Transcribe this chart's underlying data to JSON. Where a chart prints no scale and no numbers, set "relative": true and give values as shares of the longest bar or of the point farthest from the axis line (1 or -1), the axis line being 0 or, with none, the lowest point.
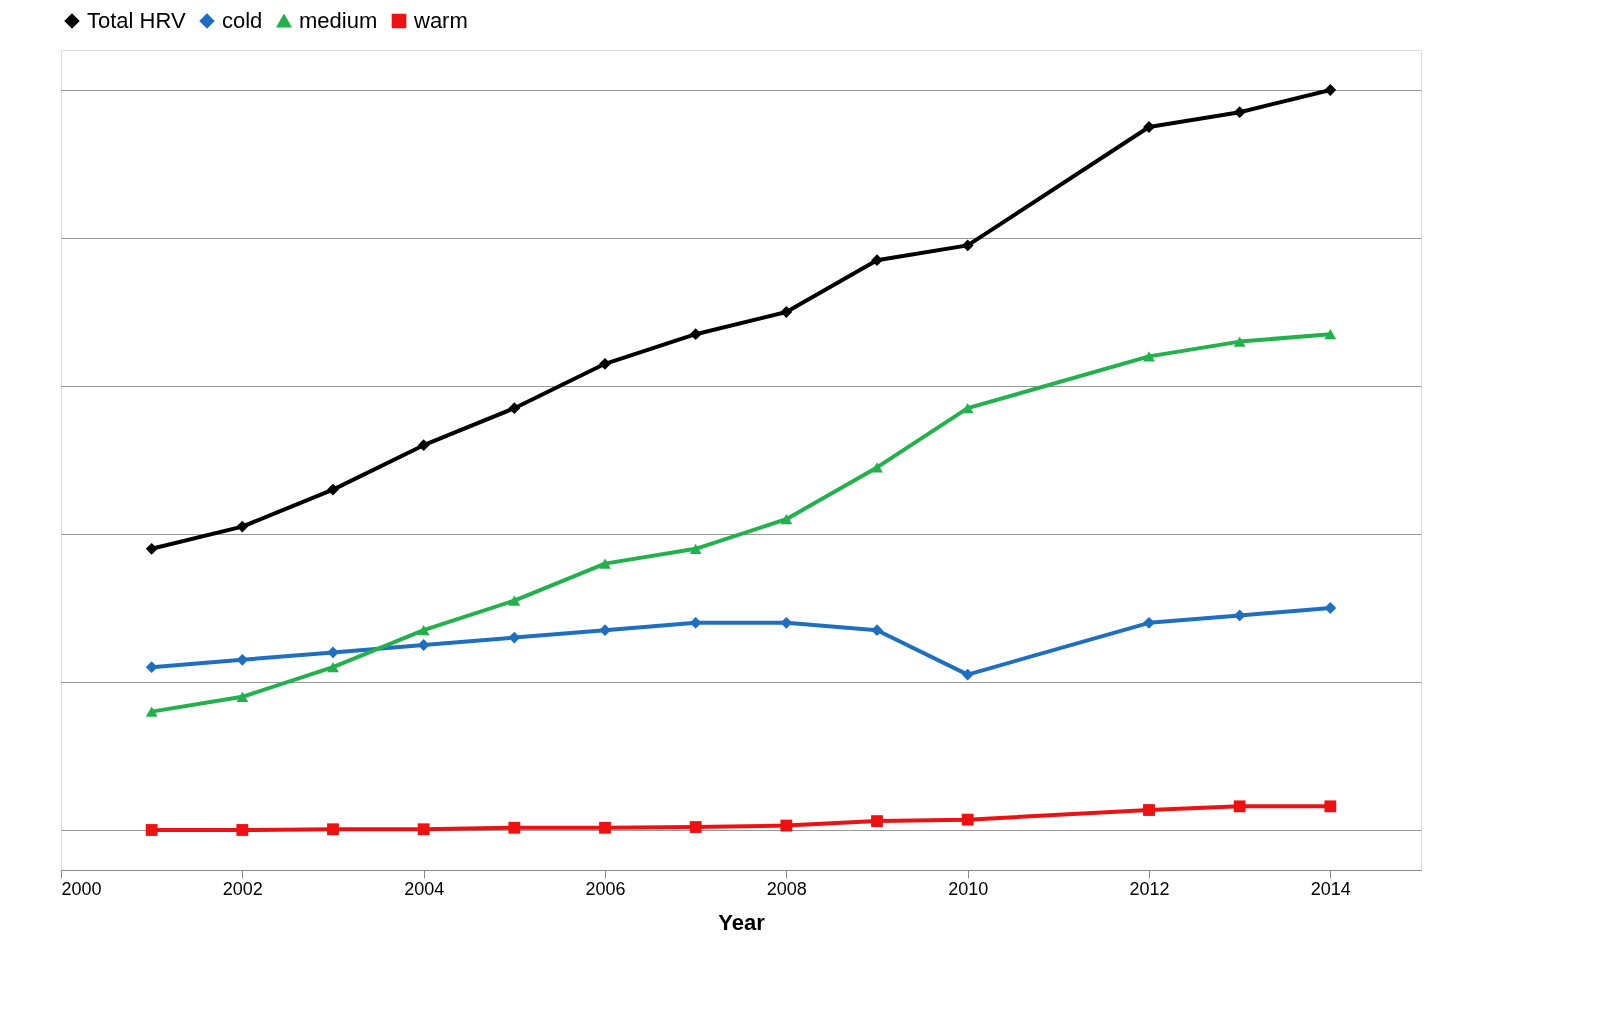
{
  "chart_data": {
    "type": "line",
    "relative": true,
    "xlabel": "Year",
    "x": [
      2001,
      2002,
      2003,
      2004,
      2005,
      2006,
      2007,
      2008,
      2009,
      2010,
      2012,
      2013,
      2014
    ],
    "xlim": [
      2000,
      2015
    ],
    "xticks": [
      2000,
      2002,
      2004,
      2006,
      2008,
      2010,
      2012,
      2014
    ],
    "grid": "y",
    "legend": "top",
    "line_style": "solid",
    "series": [
      {
        "name": "Total HRV",
        "color": "#000000",
        "marker": "diamond",
        "values": [
          0.38,
          0.41,
          0.46,
          0.52,
          0.57,
          0.63,
          0.67,
          0.7,
          0.77,
          0.79,
          0.95,
          0.97,
          1
        ]
      },
      {
        "name": "cold",
        "color": "#1f6fc0",
        "marker": "diamond",
        "values": [
          0.22,
          0.23,
          0.24,
          0.25,
          0.26,
          0.27,
          0.28,
          0.28,
          0.27,
          0.21,
          0.28,
          0.29,
          0.3
        ]
      },
      {
        "name": "medium",
        "color": "#22b14c",
        "marker": "triangle",
        "values": [
          0.16,
          0.18,
          0.22,
          0.27,
          0.31,
          0.36,
          0.38,
          0.42,
          0.49,
          0.57,
          0.64,
          0.66,
          0.67
        ]
      },
      {
        "name": "warm",
        "color": "#ee1111",
        "marker": "square",
        "values": [
          0,
          0,
          0.001,
          0.001,
          0.003,
          0.003,
          0.004,
          0.006,
          0.012,
          0.014,
          0.027,
          0.032,
          0.032
        ]
      }
    ]
  }
}
